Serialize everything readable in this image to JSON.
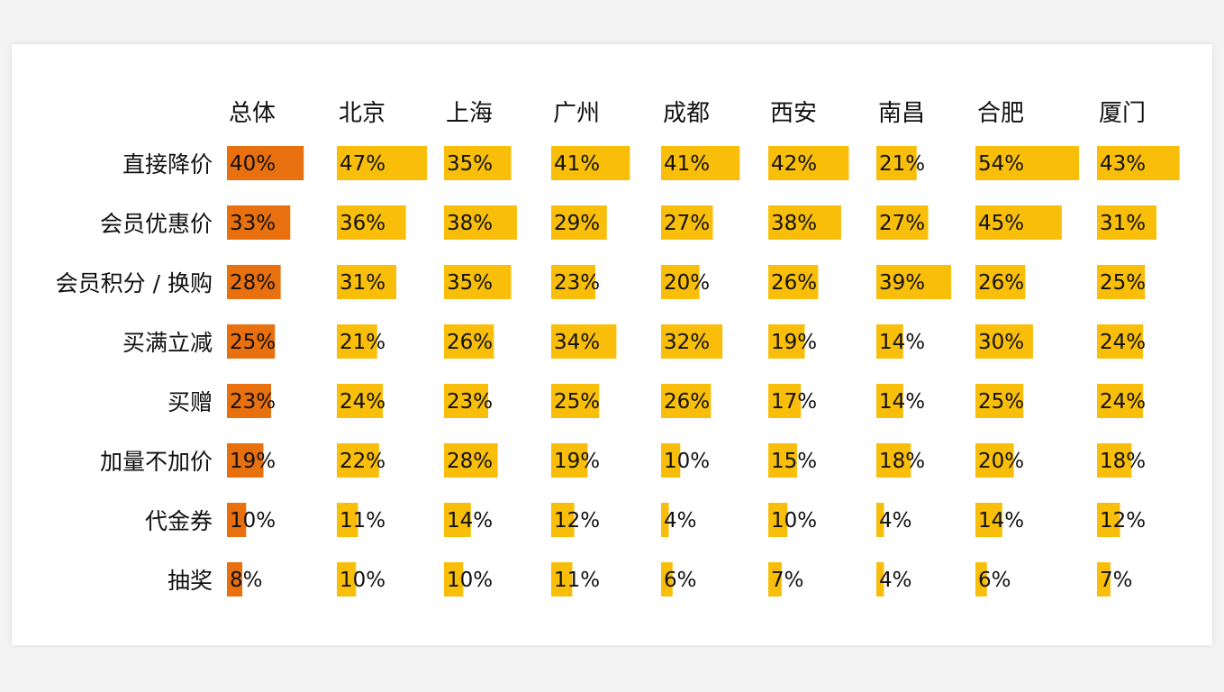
{
  "chart_data": {
    "type": "table",
    "columns": [
      "总体",
      "北京",
      "上海",
      "广州",
      "成都",
      "西安",
      "南昌",
      "合肥",
      "厦门"
    ],
    "rows": [
      "直接降价",
      "会员优惠价",
      "会员积分 / 换购",
      "买满立减",
      "买赠",
      "加量不加价",
      "代金券",
      "抽奖"
    ],
    "values": [
      [
        40,
        47,
        35,
        41,
        41,
        42,
        21,
        54,
        43
      ],
      [
        33,
        36,
        38,
        29,
        27,
        38,
        27,
        45,
        31
      ],
      [
        28,
        31,
        35,
        23,
        20,
        26,
        39,
        26,
        25
      ],
      [
        25,
        21,
        26,
        34,
        32,
        19,
        14,
        30,
        24
      ],
      [
        23,
        24,
        23,
        25,
        26,
        17,
        14,
        25,
        24
      ],
      [
        19,
        22,
        28,
        19,
        10,
        15,
        18,
        20,
        18
      ],
      [
        10,
        11,
        14,
        12,
        4,
        10,
        4,
        14,
        12
      ],
      [
        8,
        10,
        10,
        11,
        6,
        7,
        4,
        6,
        7
      ]
    ],
    "value_suffix": "%",
    "colors": {
      "overall": "#E8700E",
      "cities": "#F8BE0A",
      "text": "#111111"
    }
  }
}
